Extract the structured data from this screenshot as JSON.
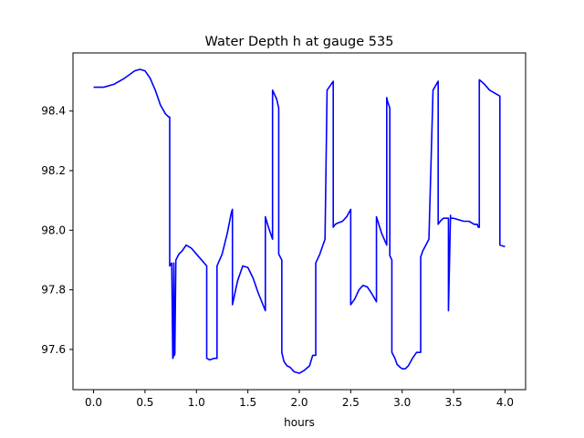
{
  "chart_data": {
    "type": "line",
    "title": "Water Depth h at gauge 535",
    "xlabel": "hours",
    "ylabel": "",
    "xlim": [
      -0.2,
      4.2
    ],
    "ylim": [
      97.465,
      98.595
    ],
    "xticks": [
      0.0,
      0.5,
      1.0,
      1.5,
      2.0,
      2.5,
      3.0,
      3.5,
      4.0
    ],
    "xtick_labels": [
      "0.0",
      "0.5",
      "1.0",
      "1.5",
      "2.0",
      "2.5",
      "3.0",
      "3.5",
      "4.0"
    ],
    "yticks": [
      97.6,
      97.8,
      98.0,
      98.2,
      98.4
    ],
    "ytick_labels": [
      "97.6",
      "97.8",
      "98.0",
      "98.2",
      "98.4"
    ],
    "grid": false,
    "series": [
      {
        "color": "#0000ff",
        "x": [
          0.0,
          0.1,
          0.2,
          0.3,
          0.4,
          0.45,
          0.5,
          0.55,
          0.6,
          0.65,
          0.7,
          0.73,
          0.74,
          0.74,
          0.76,
          0.77,
          0.775,
          0.78,
          0.785,
          0.79,
          0.8,
          0.83,
          0.86,
          0.9,
          0.95,
          1.0,
          1.05,
          1.1,
          1.1,
          1.13,
          1.17,
          1.2,
          1.2,
          1.25,
          1.3,
          1.34,
          1.35,
          1.35,
          1.4,
          1.45,
          1.5,
          1.55,
          1.6,
          1.67,
          1.67,
          1.7,
          1.74,
          1.74,
          1.78,
          1.8,
          1.8,
          1.83,
          1.83,
          1.85,
          1.88,
          1.91,
          1.95,
          2.0,
          2.05,
          2.1,
          2.13,
          2.16,
          2.16,
          2.2,
          2.25,
          2.27,
          2.27,
          2.33,
          2.33,
          2.35,
          2.38,
          2.42,
          2.46,
          2.5,
          2.5,
          2.54,
          2.58,
          2.62,
          2.66,
          2.7,
          2.75,
          2.75,
          2.8,
          2.85,
          2.85,
          2.86,
          2.88,
          2.88,
          2.9,
          2.9,
          2.93,
          2.95,
          2.98,
          3.0,
          3.03,
          3.06,
          3.1,
          3.14,
          3.18,
          3.18,
          3.2,
          3.23,
          3.26,
          3.3,
          3.3,
          3.35,
          3.35,
          3.37,
          3.4,
          3.43,
          3.44,
          3.45,
          3.45,
          3.47,
          3.47,
          3.5,
          3.55,
          3.6,
          3.65,
          3.7,
          3.73,
          3.74,
          3.75,
          3.75,
          3.8,
          3.85,
          3.9,
          3.95,
          3.95,
          4.0
        ],
        "y": [
          98.48,
          98.48,
          98.49,
          98.51,
          98.535,
          98.54,
          98.535,
          98.51,
          98.47,
          98.42,
          98.39,
          98.38,
          98.38,
          97.88,
          97.89,
          97.57,
          97.575,
          97.89,
          97.58,
          97.585,
          97.9,
          97.92,
          97.93,
          97.95,
          97.94,
          97.92,
          97.9,
          97.88,
          97.57,
          97.565,
          97.57,
          97.57,
          97.88,
          97.92,
          97.99,
          98.06,
          98.07,
          97.75,
          97.83,
          97.88,
          97.875,
          97.84,
          97.79,
          97.73,
          98.045,
          98.01,
          97.97,
          98.47,
          98.44,
          98.41,
          97.92,
          97.9,
          97.59,
          97.56,
          97.545,
          97.54,
          97.525,
          97.52,
          97.53,
          97.545,
          97.58,
          97.58,
          97.89,
          97.92,
          97.97,
          98.47,
          98.47,
          98.5,
          98.01,
          98.02,
          98.025,
          98.03,
          98.045,
          98.07,
          97.75,
          97.77,
          97.8,
          97.815,
          97.81,
          97.79,
          97.76,
          98.045,
          97.99,
          97.95,
          98.445,
          98.43,
          98.41,
          97.915,
          97.9,
          97.59,
          97.57,
          97.55,
          97.54,
          97.535,
          97.535,
          97.545,
          97.57,
          97.59,
          97.59,
          97.91,
          97.93,
          97.95,
          97.97,
          98.47,
          98.47,
          98.5,
          98.02,
          98.03,
          98.04,
          98.04,
          98.04,
          98.04,
          97.73,
          98.05,
          98.04,
          98.04,
          98.035,
          98.03,
          98.03,
          98.02,
          98.02,
          98.01,
          98.01,
          98.505,
          98.49,
          98.47,
          98.46,
          98.45,
          97.95,
          97.945
        ]
      }
    ]
  }
}
